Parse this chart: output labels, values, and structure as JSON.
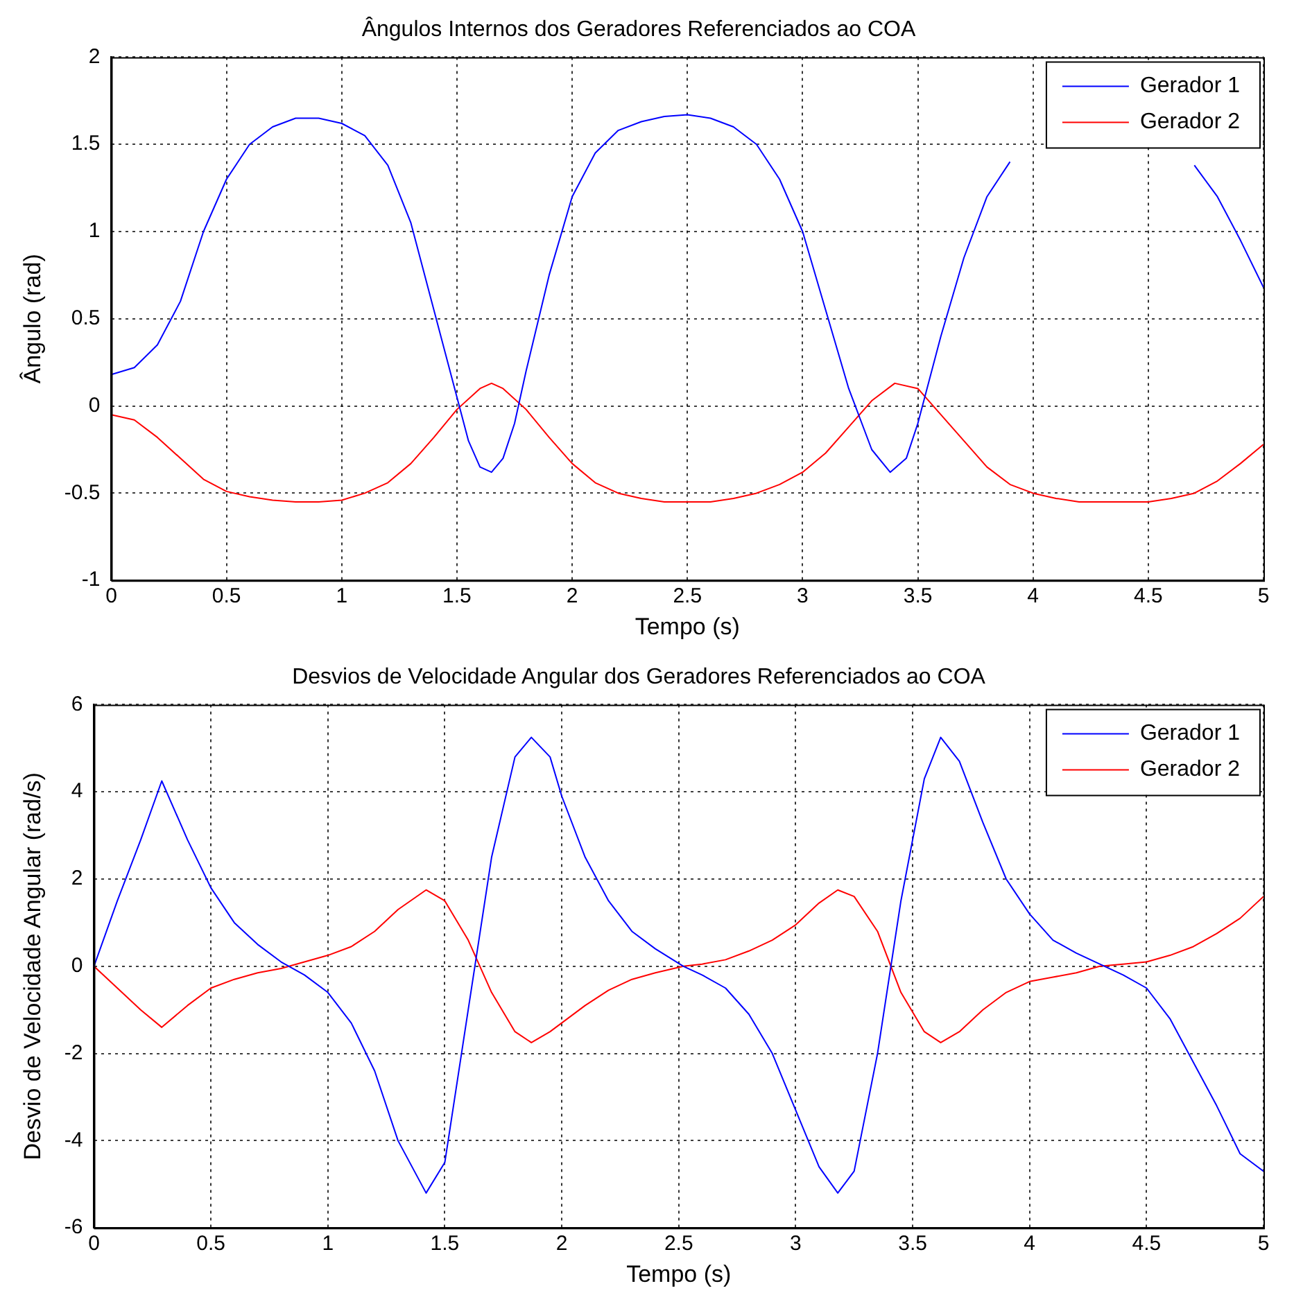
{
  "chart_data": [
    {
      "type": "line",
      "title": "Ângulos Internos dos Geradores Referenciados ao COA",
      "xlabel": "Tempo (s)",
      "ylabel": "Ângulo (rad)",
      "xlim": [
        0,
        5
      ],
      "xticks": [
        0,
        0.5,
        1,
        1.5,
        2,
        2.5,
        3,
        3.5,
        4,
        4.5,
        5
      ],
      "ylim": [
        -1,
        2
      ],
      "yticks": [
        -1,
        -0.5,
        0,
        0.5,
        1,
        1.5,
        2
      ],
      "grid": true,
      "legend": "top right",
      "marker": "none",
      "line_style": "solid",
      "series": [
        {
          "name": "Gerador 1",
          "color": "#0000ff",
          "x": [
            0,
            0.1,
            0.2,
            0.3,
            0.4,
            0.5,
            0.6,
            0.7,
            0.8,
            0.9,
            1.0,
            1.1,
            1.2,
            1.3,
            1.4,
            1.5,
            1.55,
            1.6,
            1.65,
            1.7,
            1.75,
            1.8,
            1.9,
            2.0,
            2.1,
            2.2,
            2.3,
            2.4,
            2.5,
            2.6,
            2.7,
            2.8,
            2.9,
            3.0,
            3.1,
            3.2,
            3.3,
            3.38,
            3.45,
            3.5,
            3.6,
            3.7,
            3.8,
            3.9,
            4.0,
            4.1,
            4.2,
            4.3,
            4.4,
            4.5,
            4.6,
            4.7,
            4.8,
            4.9,
            5.0
          ],
          "values": [
            0.18,
            0.22,
            0.35,
            0.6,
            1.0,
            1.3,
            1.5,
            1.6,
            1.65,
            1.65,
            1.62,
            1.55,
            1.38,
            1.05,
            0.55,
            0.05,
            -0.2,
            -0.35,
            -0.38,
            -0.3,
            -0.1,
            0.2,
            0.75,
            1.2,
            1.45,
            1.58,
            1.63,
            1.66,
            1.67,
            1.65,
            1.6,
            1.5,
            1.3,
            1.0,
            0.55,
            0.1,
            -0.25,
            -0.38,
            -0.3,
            -0.1,
            0.4,
            0.85,
            1.2,
            1.4,
            null,
            null,
            null,
            null,
            null,
            null,
            null,
            1.38,
            1.2,
            0.95,
            0.68
          ]
        },
        {
          "name": "Gerador 2",
          "color": "#ff0000",
          "x": [
            0,
            0.1,
            0.2,
            0.3,
            0.4,
            0.5,
            0.6,
            0.7,
            0.8,
            0.9,
            1.0,
            1.1,
            1.2,
            1.3,
            1.4,
            1.5,
            1.6,
            1.65,
            1.7,
            1.8,
            1.9,
            2.0,
            2.1,
            2.2,
            2.3,
            2.4,
            2.5,
            2.6,
            2.7,
            2.8,
            2.9,
            3.0,
            3.1,
            3.2,
            3.3,
            3.4,
            3.5,
            3.6,
            3.7,
            3.8,
            3.9,
            4.0,
            4.1,
            4.2,
            4.3,
            4.4,
            4.5,
            4.6,
            4.7,
            4.8,
            4.9,
            5.0
          ],
          "values": [
            -0.05,
            -0.08,
            -0.18,
            -0.3,
            -0.42,
            -0.49,
            -0.52,
            -0.54,
            -0.55,
            -0.55,
            -0.54,
            -0.5,
            -0.44,
            -0.33,
            -0.18,
            -0.02,
            0.1,
            0.13,
            0.1,
            -0.02,
            -0.18,
            -0.33,
            -0.44,
            -0.5,
            -0.53,
            -0.55,
            -0.55,
            -0.55,
            -0.53,
            -0.5,
            -0.45,
            -0.38,
            -0.27,
            -0.12,
            0.03,
            0.13,
            0.1,
            -0.05,
            -0.2,
            -0.35,
            -0.45,
            -0.5,
            -0.53,
            -0.55,
            -0.55,
            -0.55,
            -0.55,
            -0.53,
            -0.5,
            -0.43,
            -0.33,
            -0.22
          ]
        }
      ]
    },
    {
      "type": "line",
      "title": "Desvios de Velocidade Angular dos Geradores Referenciados ao COA",
      "xlabel": "Tempo (s)",
      "ylabel": "Desvio de Velocidade Angular (rad/s)",
      "xlim": [
        0,
        5
      ],
      "xticks": [
        0,
        0.5,
        1,
        1.5,
        2,
        2.5,
        3,
        3.5,
        4,
        4.5,
        5
      ],
      "ylim": [
        -6,
        6
      ],
      "yticks": [
        -6,
        -4,
        -2,
        0,
        2,
        4,
        6
      ],
      "grid": true,
      "legend": "top right",
      "marker": "none",
      "line_style": "solid",
      "series": [
        {
          "name": "Gerador 1",
          "color": "#0000ff",
          "x": [
            0,
            0.1,
            0.2,
            0.29,
            0.4,
            0.5,
            0.6,
            0.7,
            0.8,
            0.9,
            1.0,
            1.1,
            1.2,
            1.3,
            1.42,
            1.5,
            1.6,
            1.7,
            1.8,
            1.87,
            1.95,
            2.0,
            2.1,
            2.2,
            2.3,
            2.4,
            2.52,
            2.6,
            2.7,
            2.8,
            2.9,
            3.0,
            3.1,
            3.18,
            3.25,
            3.35,
            3.45,
            3.55,
            3.62,
            3.7,
            3.8,
            3.9,
            4.0,
            4.1,
            4.2,
            4.3,
            4.4,
            4.5,
            4.6,
            4.7,
            4.8,
            4.9,
            5.0
          ],
          "values": [
            0,
            1.5,
            2.9,
            4.25,
            2.9,
            1.8,
            1.0,
            0.5,
            0.1,
            -0.2,
            -0.6,
            -1.3,
            -2.4,
            -4.0,
            -5.2,
            -4.5,
            -1.0,
            2.5,
            4.8,
            5.25,
            4.8,
            3.9,
            2.5,
            1.5,
            0.8,
            0.4,
            0,
            -0.2,
            -0.5,
            -1.1,
            -2.0,
            -3.3,
            -4.6,
            -5.2,
            -4.7,
            -2.0,
            1.5,
            4.3,
            5.25,
            4.7,
            3.3,
            2.0,
            1.2,
            0.6,
            0.3,
            0.05,
            -0.2,
            -0.5,
            -1.2,
            -2.2,
            -3.2,
            -4.3,
            -4.7
          ]
        },
        {
          "name": "Gerador 2",
          "color": "#ff0000",
          "x": [
            0,
            0.1,
            0.2,
            0.29,
            0.4,
            0.5,
            0.6,
            0.7,
            0.8,
            0.9,
            1.0,
            1.1,
            1.2,
            1.3,
            1.42,
            1.5,
            1.6,
            1.7,
            1.8,
            1.87,
            1.95,
            2.1,
            2.2,
            2.3,
            2.4,
            2.52,
            2.6,
            2.7,
            2.8,
            2.9,
            3.0,
            3.1,
            3.18,
            3.25,
            3.35,
            3.45,
            3.55,
            3.62,
            3.7,
            3.8,
            3.9,
            4.0,
            4.1,
            4.2,
            4.3,
            4.4,
            4.5,
            4.6,
            4.7,
            4.8,
            4.9,
            5.0
          ],
          "values": [
            0,
            -0.5,
            -1.0,
            -1.4,
            -0.9,
            -0.5,
            -0.3,
            -0.15,
            -0.05,
            0.1,
            0.25,
            0.45,
            0.8,
            1.3,
            1.75,
            1.5,
            0.6,
            -0.6,
            -1.5,
            -1.75,
            -1.5,
            -0.9,
            -0.55,
            -0.3,
            -0.15,
            0,
            0.05,
            0.15,
            0.35,
            0.6,
            0.95,
            1.45,
            1.75,
            1.6,
            0.8,
            -0.6,
            -1.5,
            -1.75,
            -1.5,
            -1.0,
            -0.6,
            -0.35,
            -0.25,
            -0.15,
            0,
            0.05,
            0.1,
            0.25,
            0.45,
            0.75,
            1.1,
            1.6
          ]
        }
      ]
    }
  ]
}
